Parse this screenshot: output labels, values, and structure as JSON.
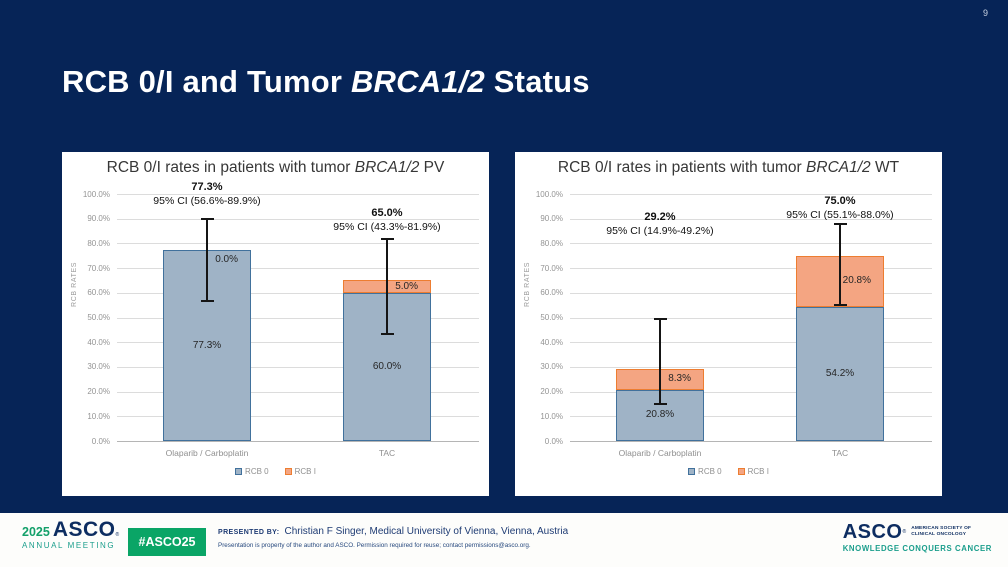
{
  "page_number": "9",
  "slide_title": {
    "prefix": "RCB 0/I and Tumor ",
    "italic": "BRCA1/2",
    "suffix": " Status"
  },
  "colors": {
    "background": "#062457",
    "rcb0_fill": "#9fb3c6",
    "rcb0_border": "#41719c",
    "rcb1_fill": "#f4a582",
    "rcb1_border": "#ed7d31",
    "error_bar": "#151515",
    "badge_green": "#0aa566",
    "teal": "#1b9e8c",
    "logo_navy": "#0d2d61"
  },
  "chart_data": [
    {
      "type": "bar",
      "stacked": true,
      "title": "RCB 0/I rates in patients with tumor BRCA1/2 PV",
      "title_parts": {
        "prefix": "RCB 0/I rates in patients with tumor ",
        "italic": "BRCA1/2",
        "suffix": " PV"
      },
      "categories": [
        "Olaparib / Carboplatin",
        "TAC"
      ],
      "series": [
        {
          "name": "RCB 0",
          "color": "#9fb3c6",
          "border": "#41719c",
          "values": [
            77.3,
            60.0
          ],
          "labels": [
            "77.3%",
            "60.0%"
          ]
        },
        {
          "name": "RCB I",
          "color": "#f4a582",
          "border": "#ed7d31",
          "values": [
            0.0,
            5.0
          ],
          "labels": [
            "0.0%",
            "5.0%"
          ]
        }
      ],
      "error_bars": [
        {
          "low": 56.6,
          "high": 89.9
        },
        {
          "low": 43.3,
          "high": 81.9
        }
      ],
      "annotations": [
        {
          "headline": "77.3%",
          "ci": "95% CI (56.6%-89.9%)"
        },
        {
          "headline": "65.0%",
          "ci": "95% CI (43.3%-81.9%)"
        }
      ],
      "xlabel": "",
      "ylabel": "RCB RATES",
      "ylim": [
        0,
        100
      ],
      "yticks": [
        "0.0%",
        "10.0%",
        "20.0%",
        "30.0%",
        "40.0%",
        "50.0%",
        "60.0%",
        "70.0%",
        "80.0%",
        "90.0%",
        "100.0%"
      ],
      "grid": true,
      "legend": [
        "RCB 0",
        "RCB I"
      ],
      "legend_position": "bottom"
    },
    {
      "type": "bar",
      "stacked": true,
      "title": "RCB 0/I rates in patients with tumor BRCA1/2 WT",
      "title_parts": {
        "prefix": "RCB 0/I rates in patients with tumor ",
        "italic": "BRCA1/2",
        "suffix": " WT"
      },
      "categories": [
        "Olaparib / Carboplatin",
        "TAC"
      ],
      "series": [
        {
          "name": "RCB 0",
          "color": "#9fb3c6",
          "border": "#41719c",
          "values": [
            20.8,
            54.2
          ],
          "labels": [
            "20.8%",
            "54.2%"
          ]
        },
        {
          "name": "RCB I",
          "color": "#f4a582",
          "border": "#ed7d31",
          "values": [
            8.3,
            20.8
          ],
          "labels": [
            "8.3%",
            "20.8%"
          ]
        }
      ],
      "error_bars": [
        {
          "low": 14.9,
          "high": 49.2
        },
        {
          "low": 55.1,
          "high": 88.0
        }
      ],
      "annotations": [
        {
          "headline": "29.2%",
          "ci": "95% CI (14.9%-49.2%)"
        },
        {
          "headline": "75.0%",
          "ci": "95% CI (55.1%-88.0%)"
        }
      ],
      "xlabel": "",
      "ylabel": "RCB RATES",
      "ylim": [
        0,
        100
      ],
      "yticks": [
        "0.0%",
        "10.0%",
        "20.0%",
        "30.0%",
        "40.0%",
        "50.0%",
        "60.0%",
        "70.0%",
        "80.0%",
        "90.0%",
        "100.0%"
      ],
      "grid": true,
      "legend": [
        "RCB 0",
        "RCB I"
      ],
      "legend_position": "bottom"
    }
  ],
  "footer": {
    "meeting_logo": {
      "year": "2025",
      "name": "ASCO",
      "trademark": "®",
      "subtitle": "ANNUAL MEETING"
    },
    "hashtag": "#ASCO25",
    "presented_by_label": "PRESENTED BY:",
    "presenter": "Christian F Singer, Medical University of Vienna, Vienna, Austria",
    "fine_print": "Presentation is property of the author and ASCO. Permission required for reuse; contact permissions@asco.org.",
    "asco_logo": {
      "name": "ASCO",
      "trademark": "®",
      "society_line1": "AMERICAN SOCIETY OF",
      "society_line2": "CLINICAL ONCOLOGY",
      "tagline": "KNOWLEDGE CONQUERS CANCER"
    }
  }
}
